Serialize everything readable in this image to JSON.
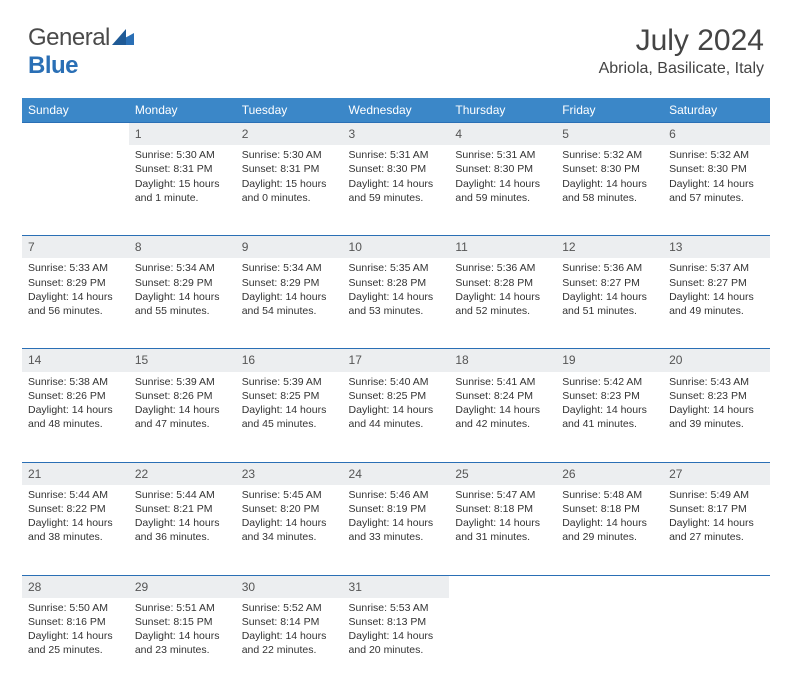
{
  "brand": {
    "part1": "General",
    "part2": "Blue"
  },
  "title": "July 2024",
  "location": "Abriola, Basilicate, Italy",
  "colors": {
    "header_bg": "#3b87c8",
    "daynum_bg": "#eceef0",
    "rule": "#2a6fb5",
    "text": "#333333"
  },
  "weekdays": [
    "Sunday",
    "Monday",
    "Tuesday",
    "Wednesday",
    "Thursday",
    "Friday",
    "Saturday"
  ],
  "weeks": [
    [
      {
        "n": "",
        "lines": []
      },
      {
        "n": "1",
        "lines": [
          "Sunrise: 5:30 AM",
          "Sunset: 8:31 PM",
          "Daylight: 15 hours and 1 minute."
        ]
      },
      {
        "n": "2",
        "lines": [
          "Sunrise: 5:30 AM",
          "Sunset: 8:31 PM",
          "Daylight: 15 hours and 0 minutes."
        ]
      },
      {
        "n": "3",
        "lines": [
          "Sunrise: 5:31 AM",
          "Sunset: 8:30 PM",
          "Daylight: 14 hours and 59 minutes."
        ]
      },
      {
        "n": "4",
        "lines": [
          "Sunrise: 5:31 AM",
          "Sunset: 8:30 PM",
          "Daylight: 14 hours and 59 minutes."
        ]
      },
      {
        "n": "5",
        "lines": [
          "Sunrise: 5:32 AM",
          "Sunset: 8:30 PM",
          "Daylight: 14 hours and 58 minutes."
        ]
      },
      {
        "n": "6",
        "lines": [
          "Sunrise: 5:32 AM",
          "Sunset: 8:30 PM",
          "Daylight: 14 hours and 57 minutes."
        ]
      }
    ],
    [
      {
        "n": "7",
        "lines": [
          "Sunrise: 5:33 AM",
          "Sunset: 8:29 PM",
          "Daylight: 14 hours and 56 minutes."
        ]
      },
      {
        "n": "8",
        "lines": [
          "Sunrise: 5:34 AM",
          "Sunset: 8:29 PM",
          "Daylight: 14 hours and 55 minutes."
        ]
      },
      {
        "n": "9",
        "lines": [
          "Sunrise: 5:34 AM",
          "Sunset: 8:29 PM",
          "Daylight: 14 hours and 54 minutes."
        ]
      },
      {
        "n": "10",
        "lines": [
          "Sunrise: 5:35 AM",
          "Sunset: 8:28 PM",
          "Daylight: 14 hours and 53 minutes."
        ]
      },
      {
        "n": "11",
        "lines": [
          "Sunrise: 5:36 AM",
          "Sunset: 8:28 PM",
          "Daylight: 14 hours and 52 minutes."
        ]
      },
      {
        "n": "12",
        "lines": [
          "Sunrise: 5:36 AM",
          "Sunset: 8:27 PM",
          "Daylight: 14 hours and 51 minutes."
        ]
      },
      {
        "n": "13",
        "lines": [
          "Sunrise: 5:37 AM",
          "Sunset: 8:27 PM",
          "Daylight: 14 hours and 49 minutes."
        ]
      }
    ],
    [
      {
        "n": "14",
        "lines": [
          "Sunrise: 5:38 AM",
          "Sunset: 8:26 PM",
          "Daylight: 14 hours and 48 minutes."
        ]
      },
      {
        "n": "15",
        "lines": [
          "Sunrise: 5:39 AM",
          "Sunset: 8:26 PM",
          "Daylight: 14 hours and 47 minutes."
        ]
      },
      {
        "n": "16",
        "lines": [
          "Sunrise: 5:39 AM",
          "Sunset: 8:25 PM",
          "Daylight: 14 hours and 45 minutes."
        ]
      },
      {
        "n": "17",
        "lines": [
          "Sunrise: 5:40 AM",
          "Sunset: 8:25 PM",
          "Daylight: 14 hours and 44 minutes."
        ]
      },
      {
        "n": "18",
        "lines": [
          "Sunrise: 5:41 AM",
          "Sunset: 8:24 PM",
          "Daylight: 14 hours and 42 minutes."
        ]
      },
      {
        "n": "19",
        "lines": [
          "Sunrise: 5:42 AM",
          "Sunset: 8:23 PM",
          "Daylight: 14 hours and 41 minutes."
        ]
      },
      {
        "n": "20",
        "lines": [
          "Sunrise: 5:43 AM",
          "Sunset: 8:23 PM",
          "Daylight: 14 hours and 39 minutes."
        ]
      }
    ],
    [
      {
        "n": "21",
        "lines": [
          "Sunrise: 5:44 AM",
          "Sunset: 8:22 PM",
          "Daylight: 14 hours and 38 minutes."
        ]
      },
      {
        "n": "22",
        "lines": [
          "Sunrise: 5:44 AM",
          "Sunset: 8:21 PM",
          "Daylight: 14 hours and 36 minutes."
        ]
      },
      {
        "n": "23",
        "lines": [
          "Sunrise: 5:45 AM",
          "Sunset: 8:20 PM",
          "Daylight: 14 hours and 34 minutes."
        ]
      },
      {
        "n": "24",
        "lines": [
          "Sunrise: 5:46 AM",
          "Sunset: 8:19 PM",
          "Daylight: 14 hours and 33 minutes."
        ]
      },
      {
        "n": "25",
        "lines": [
          "Sunrise: 5:47 AM",
          "Sunset: 8:18 PM",
          "Daylight: 14 hours and 31 minutes."
        ]
      },
      {
        "n": "26",
        "lines": [
          "Sunrise: 5:48 AM",
          "Sunset: 8:18 PM",
          "Daylight: 14 hours and 29 minutes."
        ]
      },
      {
        "n": "27",
        "lines": [
          "Sunrise: 5:49 AM",
          "Sunset: 8:17 PM",
          "Daylight: 14 hours and 27 minutes."
        ]
      }
    ],
    [
      {
        "n": "28",
        "lines": [
          "Sunrise: 5:50 AM",
          "Sunset: 8:16 PM",
          "Daylight: 14 hours and 25 minutes."
        ]
      },
      {
        "n": "29",
        "lines": [
          "Sunrise: 5:51 AM",
          "Sunset: 8:15 PM",
          "Daylight: 14 hours and 23 minutes."
        ]
      },
      {
        "n": "30",
        "lines": [
          "Sunrise: 5:52 AM",
          "Sunset: 8:14 PM",
          "Daylight: 14 hours and 22 minutes."
        ]
      },
      {
        "n": "31",
        "lines": [
          "Sunrise: 5:53 AM",
          "Sunset: 8:13 PM",
          "Daylight: 14 hours and 20 minutes."
        ]
      },
      {
        "n": "",
        "lines": []
      },
      {
        "n": "",
        "lines": []
      },
      {
        "n": "",
        "lines": []
      }
    ]
  ]
}
